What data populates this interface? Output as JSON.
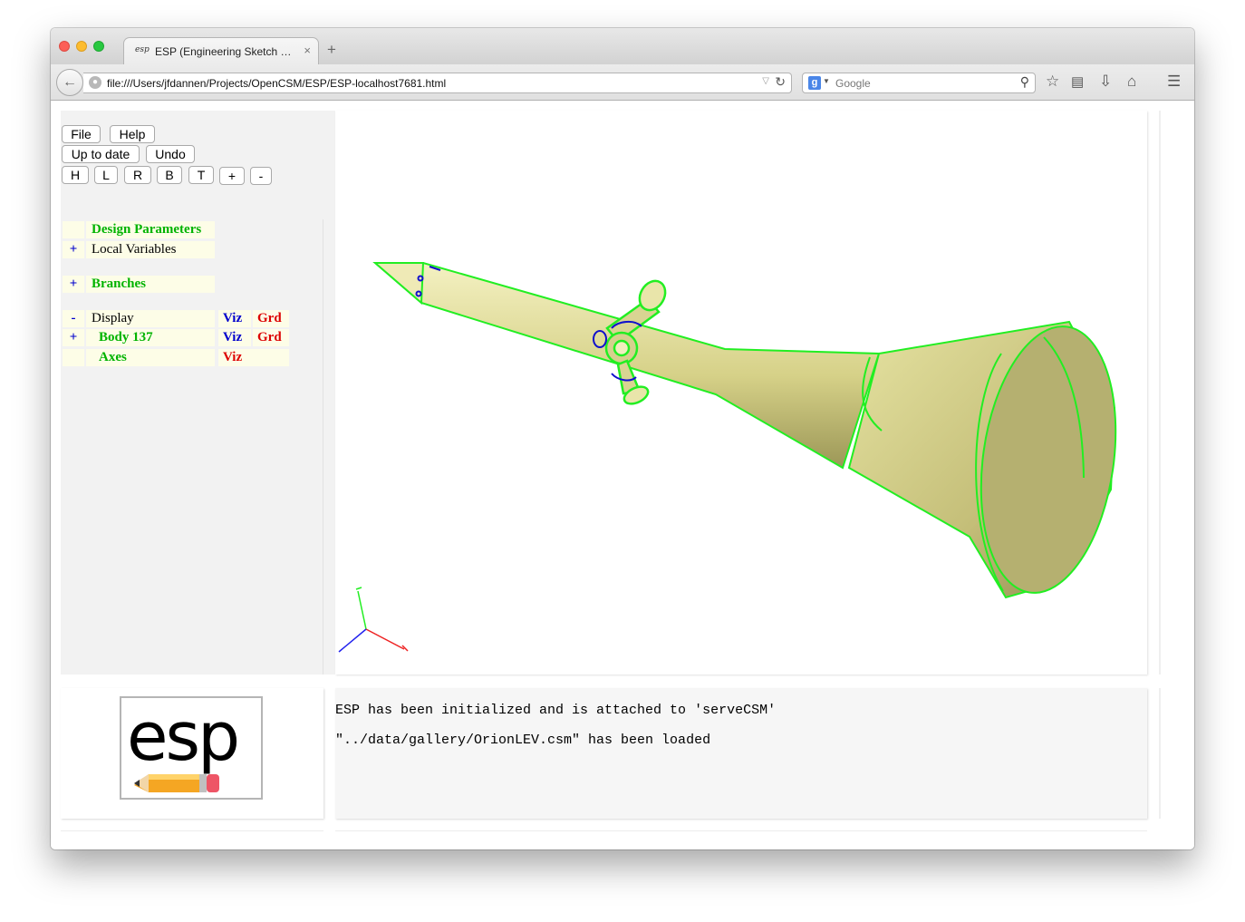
{
  "browser": {
    "tab_favicon": "esp",
    "tab_title": "ESP (Engineering Sketch Pa...",
    "tab_close": "×",
    "new_tab": "+",
    "url": "file:///Users/jfdannen/Projects/OpenCSM/ESP/ESP-localhost7681.html",
    "search_engine_badge": "g",
    "search_placeholder": "Google",
    "icons": [
      "back-arrow-icon",
      "globe-icon",
      "reload-icon",
      "search-icon",
      "star-icon",
      "reading-list-icon",
      "download-icon",
      "home-icon",
      "menu-icon"
    ]
  },
  "toolbar": {
    "file": "File",
    "help": "Help",
    "up_to_date": "Up to date",
    "undo": "Undo",
    "views": [
      "H",
      "L",
      "R",
      "B",
      "T",
      "+",
      "-"
    ]
  },
  "tree": {
    "design_parameters": "Design Parameters",
    "local_variables_sign": "+",
    "local_variables": "Local Variables",
    "branches_sign": "+",
    "branches": "Branches",
    "display_sign": "-",
    "display": "Display",
    "display_viz": "Viz",
    "display_grd": "Grd",
    "body_sign": "+",
    "body": "Body 137",
    "body_viz": "Viz",
    "body_grd": "Grd",
    "axes": "Axes",
    "axes_viz": "Viz"
  },
  "colors": {
    "model_fill": "#e6e39a",
    "edge_green": "#22ee22",
    "edge_blue": "#1010cc"
  },
  "logo_text": "esp",
  "messages": [
    "ESP has been initialized and is attached to 'serveCSM'",
    "\"../data/gallery/OrionLEV.csm\" has been loaded"
  ]
}
